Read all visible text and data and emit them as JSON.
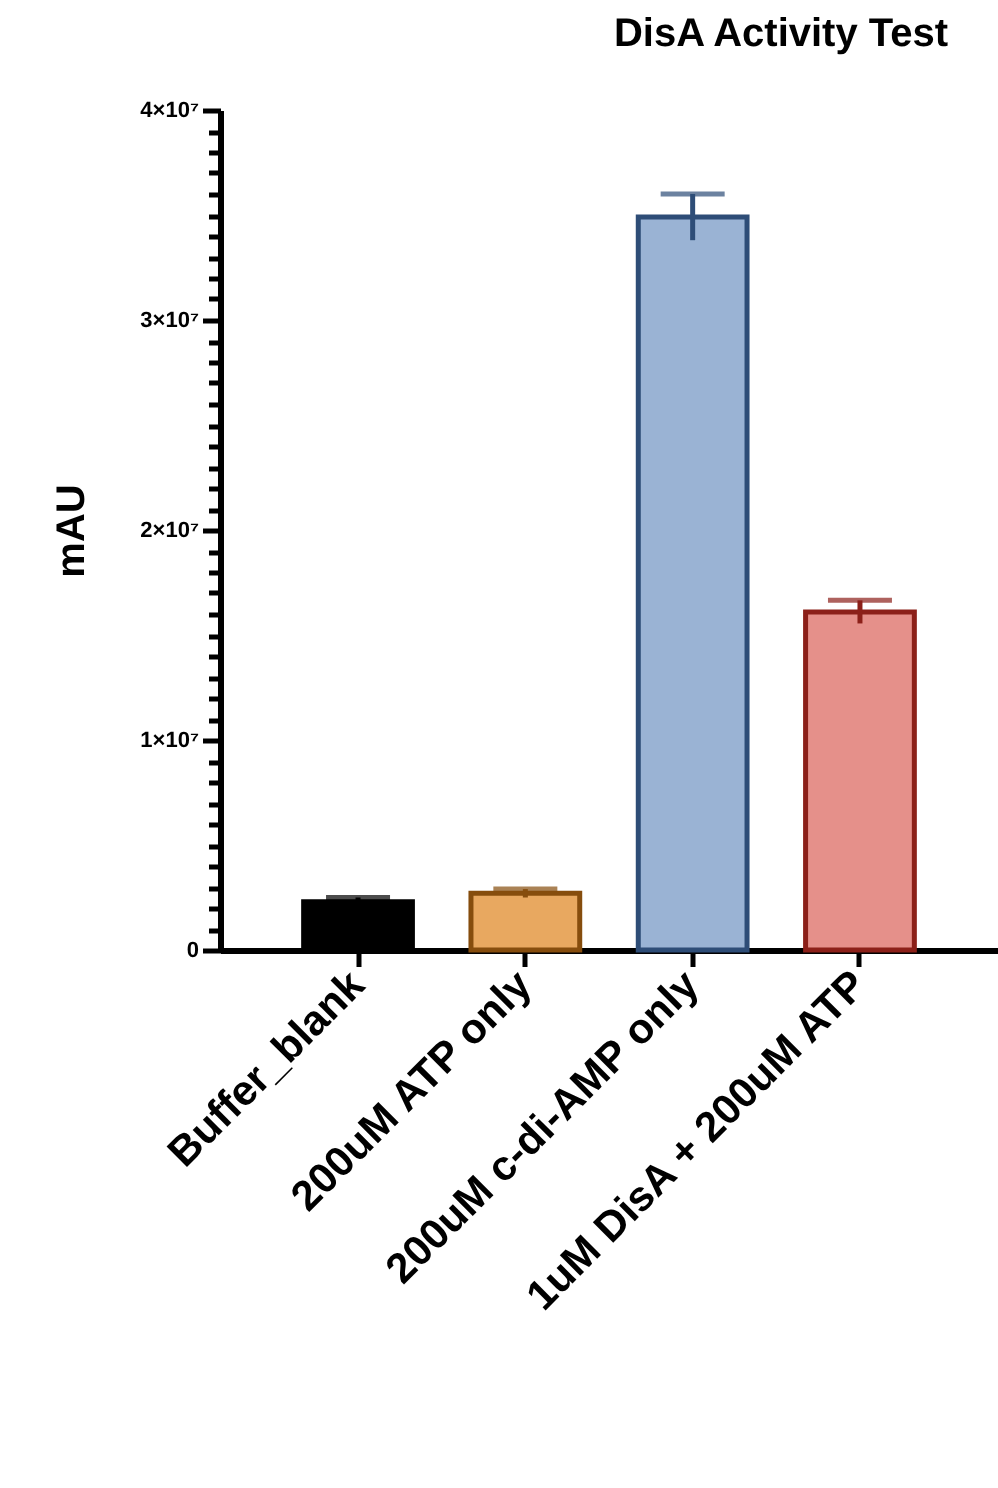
{
  "chart_data": {
    "type": "bar",
    "title": "DisA Activity Test",
    "ylabel": "mAU",
    "categories": [
      "Buffer_blank",
      "200uM ATP only",
      "200uM c-di-AMP only",
      "1uM DisA + 200uM ATP"
    ],
    "values": [
      2300000,
      2700000,
      34900000,
      16100000
    ],
    "errors": [
      200000,
      200000,
      1100000,
      550000
    ],
    "colors": [
      "#000000",
      "#e8a860",
      "#9ab3d4",
      "#e5908a"
    ],
    "ylim": [
      0,
      40000000
    ],
    "yticks": [
      {
        "value": 0,
        "label": "0"
      },
      {
        "value": 1000000,
        "label": null
      },
      {
        "value": 2000000,
        "label": null
      },
      {
        "value": 3000000,
        "label": null
      },
      {
        "value": 4000000,
        "label": null
      },
      {
        "value": 5000000,
        "label": null
      },
      {
        "value": 6000000,
        "label": null
      },
      {
        "value": 7000000,
        "label": null
      },
      {
        "value": 8000000,
        "label": null
      },
      {
        "value": 9000000,
        "label": null
      },
      {
        "value": 10000000,
        "label": "1×10⁷"
      },
      {
        "value": 11000000,
        "label": null
      },
      {
        "value": 12000000,
        "label": null
      },
      {
        "value": 13000000,
        "label": null
      },
      {
        "value": 14000000,
        "label": null
      },
      {
        "value": 15000000,
        "label": null
      },
      {
        "value": 16000000,
        "label": null
      },
      {
        "value": 17000000,
        "label": null
      },
      {
        "value": 18000000,
        "label": null
      },
      {
        "value": 19000000,
        "label": null
      },
      {
        "value": 20000000,
        "label": "2×10⁷"
      },
      {
        "value": 21000000,
        "label": null
      },
      {
        "value": 22000000,
        "label": null
      },
      {
        "value": 23000000,
        "label": null
      },
      {
        "value": 24000000,
        "label": null
      },
      {
        "value": 25000000,
        "label": null
      },
      {
        "value": 26000000,
        "label": null
      },
      {
        "value": 27000000,
        "label": null
      },
      {
        "value": 28000000,
        "label": null
      },
      {
        "value": 29000000,
        "label": null
      },
      {
        "value": 30000000,
        "label": "3×10⁷"
      },
      {
        "value": 31000000,
        "label": null
      },
      {
        "value": 32000000,
        "label": null
      },
      {
        "value": 33000000,
        "label": null
      },
      {
        "value": 34000000,
        "label": null
      },
      {
        "value": 35000000,
        "label": null
      },
      {
        "value": 36000000,
        "label": null
      },
      {
        "value": 37000000,
        "label": null
      },
      {
        "value": 38000000,
        "label": null
      },
      {
        "value": 39000000,
        "label": null
      },
      {
        "value": 40000000,
        "label": "4×10⁷"
      }
    ],
    "grid": false
  }
}
